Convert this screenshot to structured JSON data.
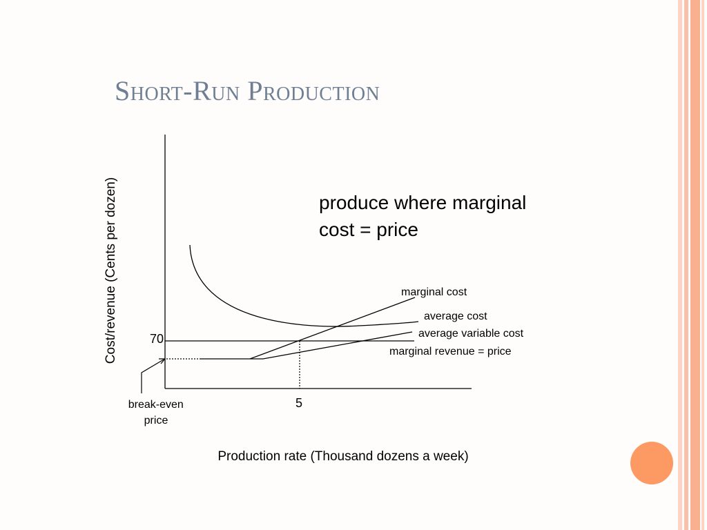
{
  "slide": {
    "title": "Short-Run Production",
    "colors": {
      "title": "#6f7f93",
      "accent_circle": "#fd9a63",
      "stripe_light": "#fdd4c4",
      "stripe_mid": "#fbbfa9",
      "stripe_dark": "#f8b091"
    }
  },
  "chart_data": {
    "type": "line",
    "title": "",
    "xlabel": "Production rate (Thousand dozens a week)",
    "ylabel": "Cost/revenue (Cents per dozen)",
    "x_ticks": [
      5
    ],
    "y_ticks": [
      70
    ],
    "annotation": "produce where marginal cost = price",
    "break_even_label": "break-even price",
    "series": [
      {
        "name": "marginal cost"
      },
      {
        "name": "average cost"
      },
      {
        "name": "average variable cost"
      },
      {
        "name": "marginal revenue = price"
      }
    ]
  }
}
